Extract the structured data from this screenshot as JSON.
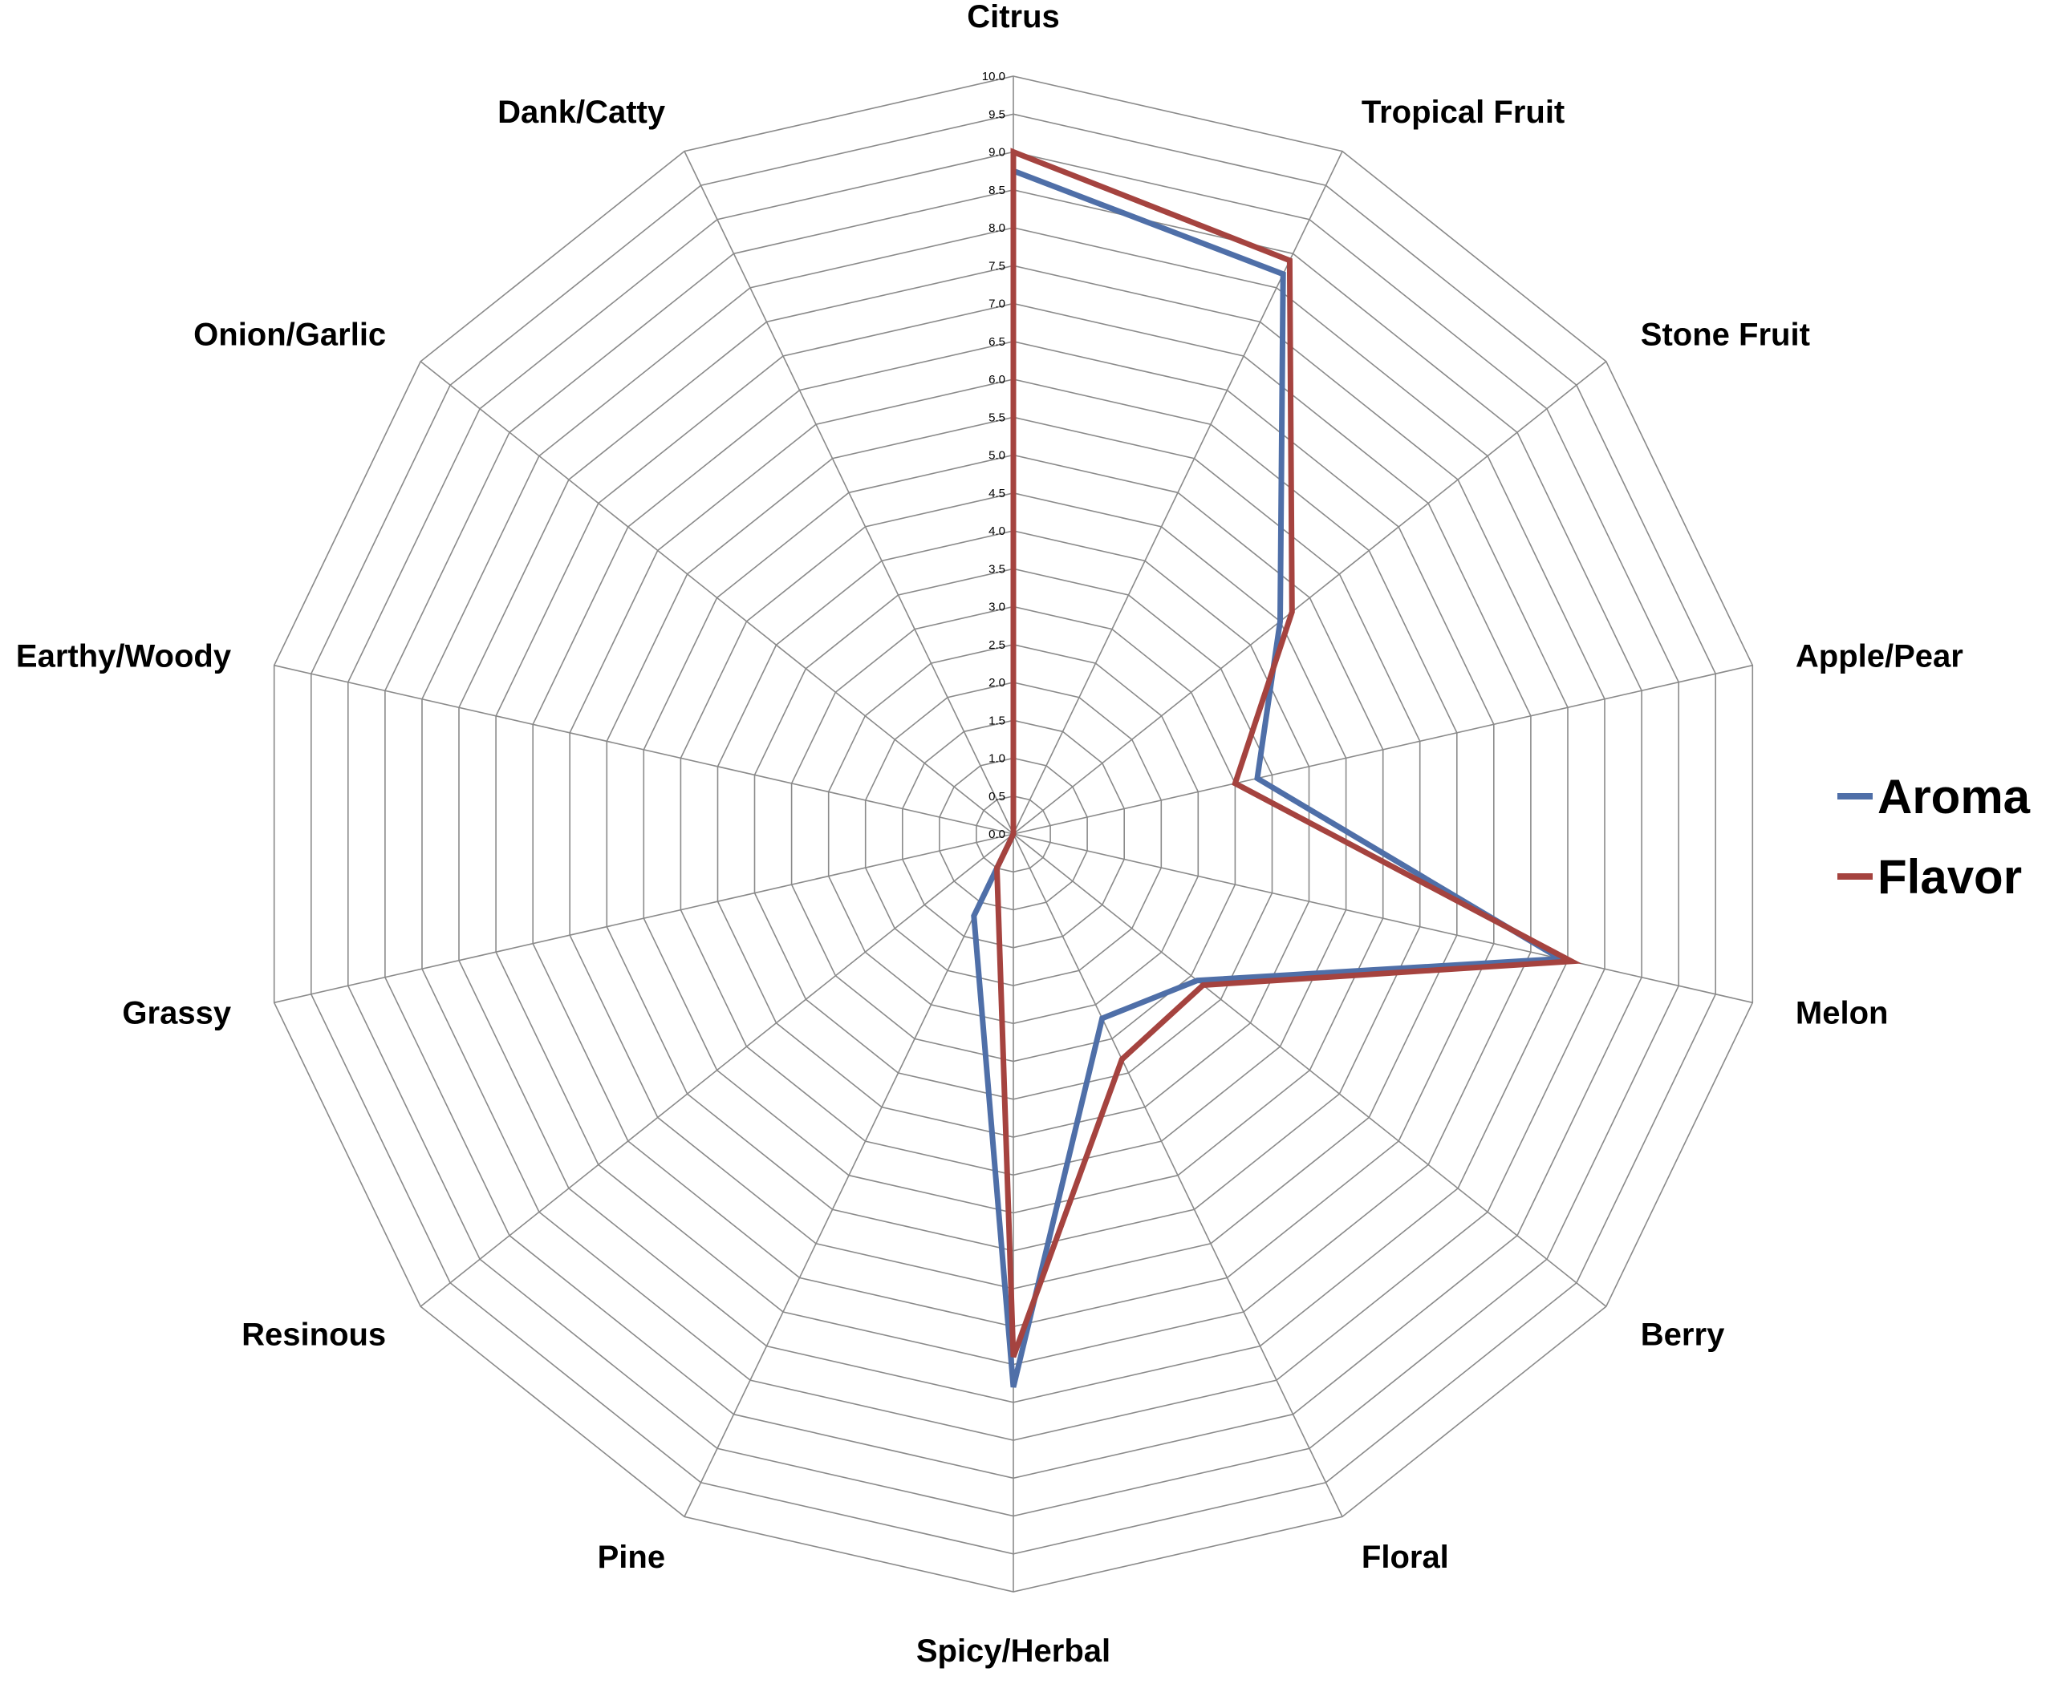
{
  "chart_data": {
    "type": "radar",
    "categories": [
      "Citrus",
      "Tropical Fruit",
      "Stone Fruit",
      "Apple/Pear",
      "Melon",
      "Berry",
      "Floral",
      "Spicy/Herbal",
      "Pine",
      "Resinous",
      "Grassy",
      "Earthy/Woody",
      "Onion/Garlic",
      "Dank/Catty"
    ],
    "series": [
      {
        "name": "Aroma",
        "color": "#4f6fa8",
        "values": [
          8.75,
          8.2,
          4.5,
          3.3,
          7.4,
          3.1,
          2.7,
          7.3,
          1.2,
          0.0,
          0.0,
          0.0,
          0.0,
          0.0
        ]
      },
      {
        "name": "Flavor",
        "color": "#a5433f",
        "values": [
          9.0,
          8.4,
          4.7,
          3.0,
          7.55,
          3.2,
          3.3,
          6.9,
          0.5,
          0.0,
          0.0,
          0.0,
          0.0,
          0.0
        ]
      }
    ],
    "rlim": [
      0,
      10
    ],
    "tick_step": 0.5,
    "tick_labels": [
      "0.0",
      "0.5",
      "1.0",
      "1.5",
      "2.0",
      "2.5",
      "3.0",
      "3.5",
      "4.0",
      "4.5",
      "5.0",
      "5.5",
      "6.0",
      "6.5",
      "7.0",
      "7.5",
      "8.0",
      "8.5",
      "9.0",
      "9.5",
      "10.0"
    ],
    "grid": true,
    "legend": "right"
  }
}
